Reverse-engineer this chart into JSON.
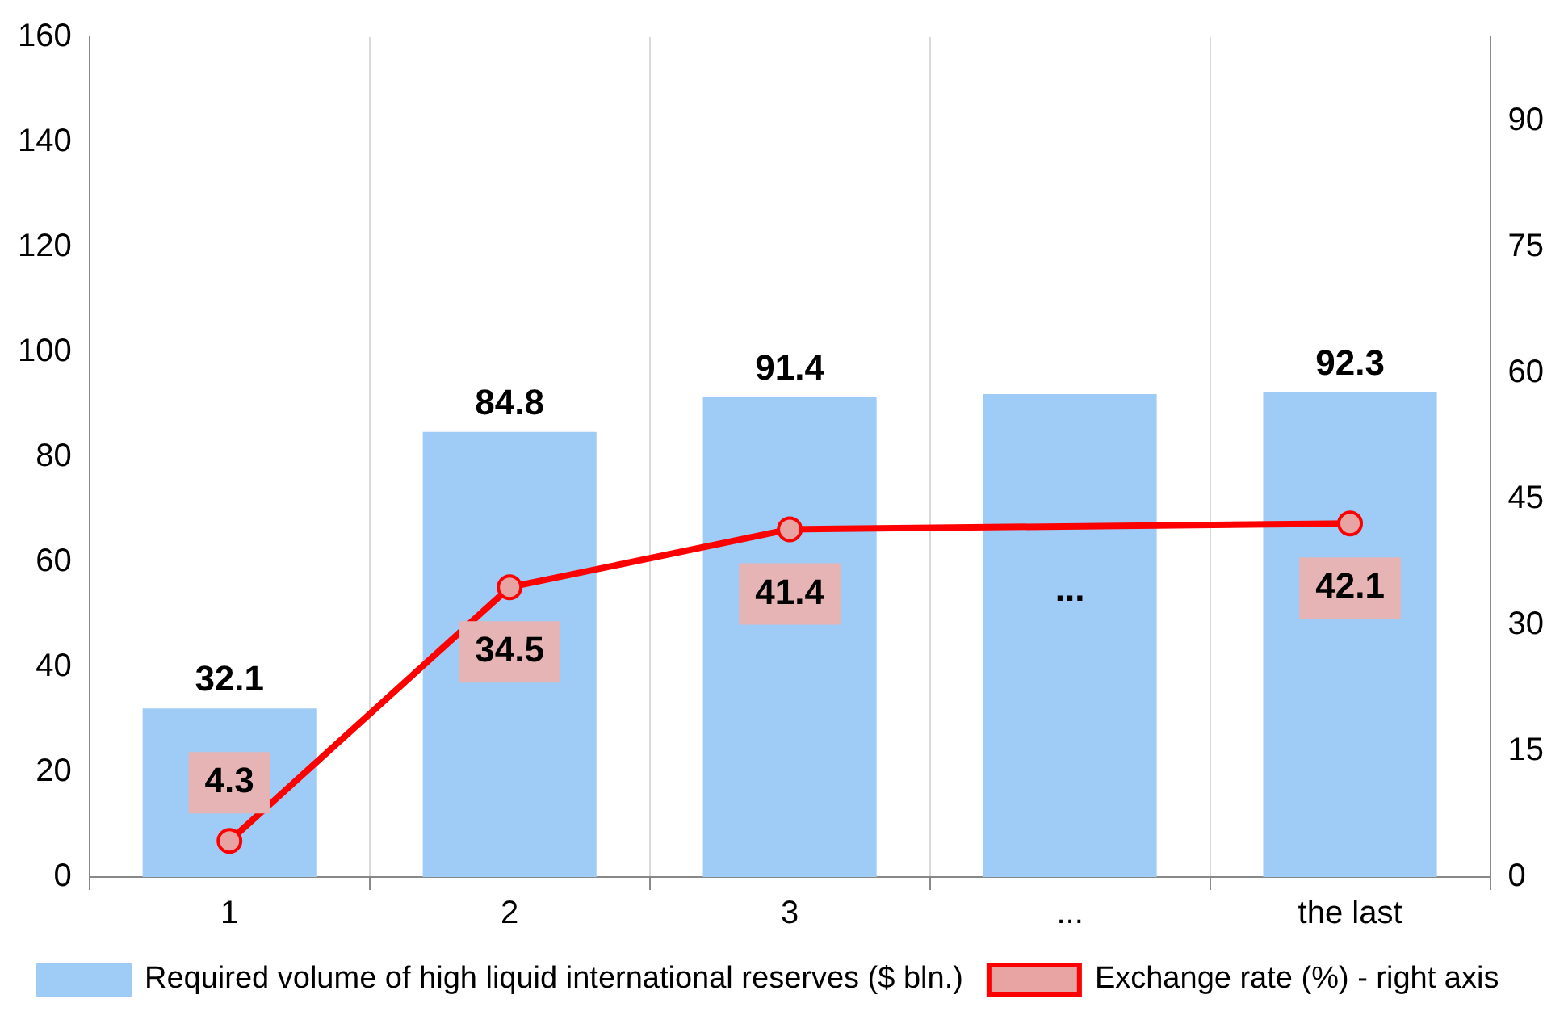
{
  "chart_data": {
    "type": "bar",
    "categories": [
      "1",
      "2",
      "3",
      "...",
      "the last"
    ],
    "series": [
      {
        "name": "Required volume of high liquid international reserves ($ bln.)",
        "color": "#9fcbf7",
        "values": [
          32.1,
          84.8,
          91.4,
          92.0,
          92.3
        ],
        "value_labels": [
          "32.1",
          "84.8",
          "91.4",
          null,
          "92.3"
        ]
      },
      {
        "type": "line",
        "axis": "y2",
        "name": "Exchange rate (%) - right axis",
        "color": "#ff0000",
        "marker": "circle",
        "values": [
          4.3,
          34.5,
          41.4,
          null,
          42.1
        ],
        "value_labels": [
          "4.3",
          "34.5",
          "41.4",
          "...",
          "42.1"
        ]
      }
    ],
    "ylim": [
      0,
      160
    ],
    "yticks": [
      0,
      20,
      40,
      60,
      80,
      100,
      120,
      140,
      160
    ],
    "y2lim": [
      0,
      100
    ],
    "y2ticks": [
      0,
      15,
      30,
      45,
      60,
      75,
      90
    ],
    "grid": "x",
    "legend": "bottom"
  }
}
